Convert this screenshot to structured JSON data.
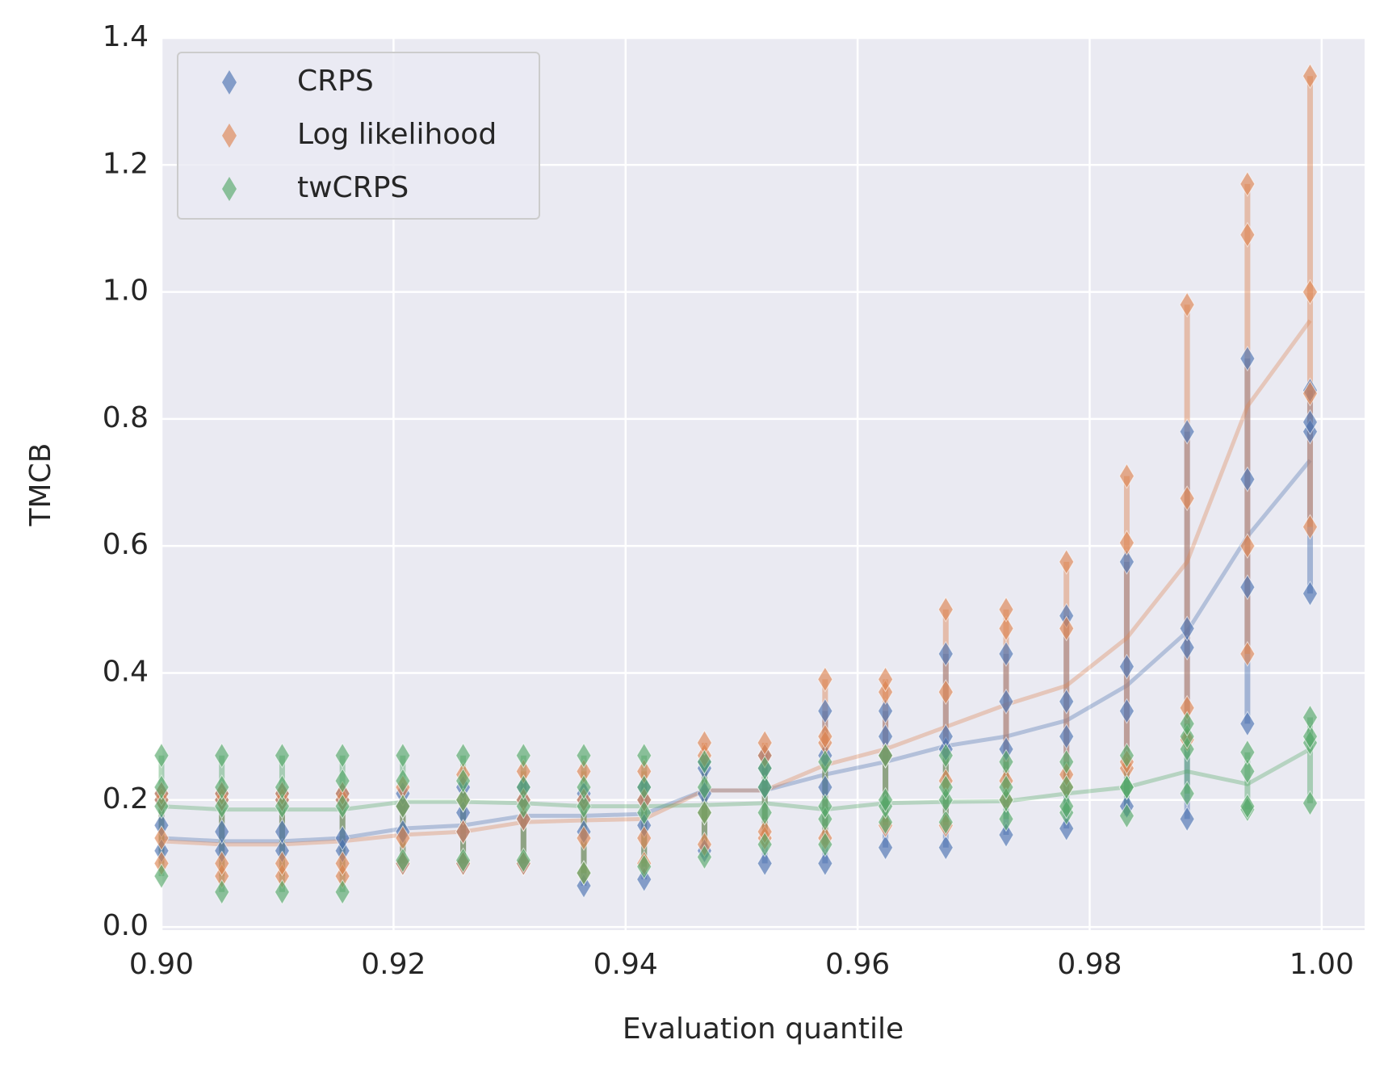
{
  "chart_data": {
    "type": "scatter",
    "x_label": "Evaluation quantile",
    "y_label": "TMCB",
    "x": [
      0.9,
      0.9052,
      0.9104,
      0.9156,
      0.9208,
      0.926,
      0.9312,
      0.9364,
      0.9416,
      0.9468,
      0.952,
      0.9572,
      0.9624,
      0.9676,
      0.9728,
      0.978,
      0.9832,
      0.9884,
      0.9936,
      0.999
    ],
    "xlim": [
      0.9,
      1.0037
    ],
    "ylim": [
      -0.005,
      1.4
    ],
    "xticks": [
      {
        "value": 0.9,
        "label": "0.90"
      },
      {
        "value": 0.92,
        "label": "0.92"
      },
      {
        "value": 0.94,
        "label": "0.94"
      },
      {
        "value": 0.96,
        "label": "0.96"
      },
      {
        "value": 0.98,
        "label": "0.98"
      },
      {
        "value": 1.0,
        "label": "1.00"
      }
    ],
    "yticks": [
      {
        "value": 0,
        "label": "0.0"
      },
      {
        "value": 0.2,
        "label": "0.2"
      },
      {
        "value": 0.4,
        "label": "0.4"
      },
      {
        "value": 0.6,
        "label": "0.6"
      },
      {
        "value": 0.8,
        "label": "0.8"
      },
      {
        "value": 1.0,
        "label": "1.0"
      },
      {
        "value": 1.2,
        "label": "1.2"
      },
      {
        "value": 1.4,
        "label": "1.4"
      }
    ],
    "grid": true,
    "legend": "upper left",
    "series": [
      {
        "name": "CRPS",
        "color": "#4c72b0",
        "values": [
          0.14,
          0.135,
          0.135,
          0.14,
          0.155,
          0.16,
          0.175,
          0.175,
          0.178,
          0.215,
          0.215,
          0.24,
          0.26,
          0.285,
          0.3,
          0.325,
          0.38,
          0.465,
          0.615,
          0.735
        ],
        "points": [
          [
            0.12,
            0.16,
            0.2,
            0.21
          ],
          [
            0.12,
            0.15,
            0.2,
            0.21
          ],
          [
            0.12,
            0.15,
            0.2,
            0.21
          ],
          [
            0.12,
            0.14,
            0.2,
            0.21
          ],
          [
            0.1,
            0.15,
            0.19,
            0.21
          ],
          [
            0.1,
            0.15,
            0.18,
            0.22
          ],
          [
            0.1,
            0.17,
            0.2,
            0.22
          ],
          [
            0.065,
            0.15,
            0.2,
            0.21
          ],
          [
            0.075,
            0.16,
            0.2,
            0.22
          ],
          [
            0.12,
            0.21,
            0.25,
            0.26
          ],
          [
            0.1,
            0.22,
            0.25,
            0.27
          ],
          [
            0.1,
            0.22,
            0.27,
            0.34
          ],
          [
            0.125,
            0.27,
            0.3,
            0.34
          ],
          [
            0.125,
            0.28,
            0.3,
            0.43
          ],
          [
            0.145,
            0.28,
            0.355,
            0.43
          ],
          [
            0.155,
            0.3,
            0.355,
            0.49
          ],
          [
            0.19,
            0.34,
            0.41,
            0.575
          ],
          [
            0.17,
            0.44,
            0.47,
            0.78
          ],
          [
            0.32,
            0.535,
            0.705,
            0.895
          ],
          [
            0.525,
            0.78,
            0.795,
            0.845
          ]
        ]
      },
      {
        "name": "Log likelihood",
        "color": "#dd8452",
        "values": [
          0.135,
          0.13,
          0.13,
          0.135,
          0.145,
          0.15,
          0.165,
          0.168,
          0.17,
          0.215,
          0.215,
          0.255,
          0.28,
          0.315,
          0.35,
          0.38,
          0.455,
          0.575,
          0.82,
          0.955
        ],
        "points": [
          [
            0.1,
            0.14,
            0.2,
            0.21
          ],
          [
            0.08,
            0.1,
            0.2,
            0.21
          ],
          [
            0.08,
            0.1,
            0.2,
            0.21
          ],
          [
            0.08,
            0.1,
            0.2,
            0.21
          ],
          [
            0.1,
            0.14,
            0.19,
            0.22
          ],
          [
            0.1,
            0.15,
            0.2,
            0.24
          ],
          [
            0.1,
            0.17,
            0.2,
            0.245
          ],
          [
            0.085,
            0.14,
            0.2,
            0.245
          ],
          [
            0.1,
            0.14,
            0.2,
            0.245
          ],
          [
            0.13,
            0.18,
            0.27,
            0.29
          ],
          [
            0.14,
            0.15,
            0.27,
            0.29
          ],
          [
            0.14,
            0.29,
            0.3,
            0.39
          ],
          [
            0.16,
            0.27,
            0.37,
            0.39
          ],
          [
            0.16,
            0.23,
            0.37,
            0.5
          ],
          [
            0.2,
            0.23,
            0.47,
            0.5
          ],
          [
            0.22,
            0.24,
            0.47,
            0.575
          ],
          [
            0.25,
            0.26,
            0.605,
            0.71
          ],
          [
            0.295,
            0.345,
            0.675,
            0.98
          ],
          [
            0.43,
            0.6,
            1.09,
            1.17
          ],
          [
            0.63,
            0.84,
            1.0,
            1.34
          ]
        ]
      },
      {
        "name": "twCRPS",
        "color": "#55a868",
        "values": [
          0.19,
          0.185,
          0.185,
          0.185,
          0.197,
          0.197,
          0.195,
          0.19,
          0.19,
          0.192,
          0.195,
          0.185,
          0.195,
          0.197,
          0.198,
          0.21,
          0.22,
          0.245,
          0.225,
          0.28
        ],
        "points": [
          [
            0.08,
            0.19,
            0.22,
            0.27
          ],
          [
            0.055,
            0.19,
            0.22,
            0.27
          ],
          [
            0.055,
            0.19,
            0.22,
            0.27
          ],
          [
            0.055,
            0.19,
            0.23,
            0.27
          ],
          [
            0.105,
            0.19,
            0.23,
            0.27
          ],
          [
            0.105,
            0.2,
            0.23,
            0.27
          ],
          [
            0.105,
            0.19,
            0.22,
            0.27
          ],
          [
            0.085,
            0.19,
            0.22,
            0.27
          ],
          [
            0.095,
            0.18,
            0.22,
            0.27
          ],
          [
            0.11,
            0.18,
            0.22,
            0.26
          ],
          [
            0.13,
            0.18,
            0.22,
            0.25
          ],
          [
            0.13,
            0.17,
            0.19,
            0.26
          ],
          [
            0.165,
            0.19,
            0.2,
            0.27
          ],
          [
            0.165,
            0.2,
            0.22,
            0.27
          ],
          [
            0.17,
            0.2,
            0.22,
            0.26
          ],
          [
            0.18,
            0.19,
            0.22,
            0.26
          ],
          [
            0.175,
            0.22,
            0.22,
            0.27
          ],
          [
            0.21,
            0.28,
            0.3,
            0.32
          ],
          [
            0.185,
            0.19,
            0.245,
            0.275
          ],
          [
            0.195,
            0.29,
            0.3,
            0.33
          ]
        ]
      }
    ]
  }
}
